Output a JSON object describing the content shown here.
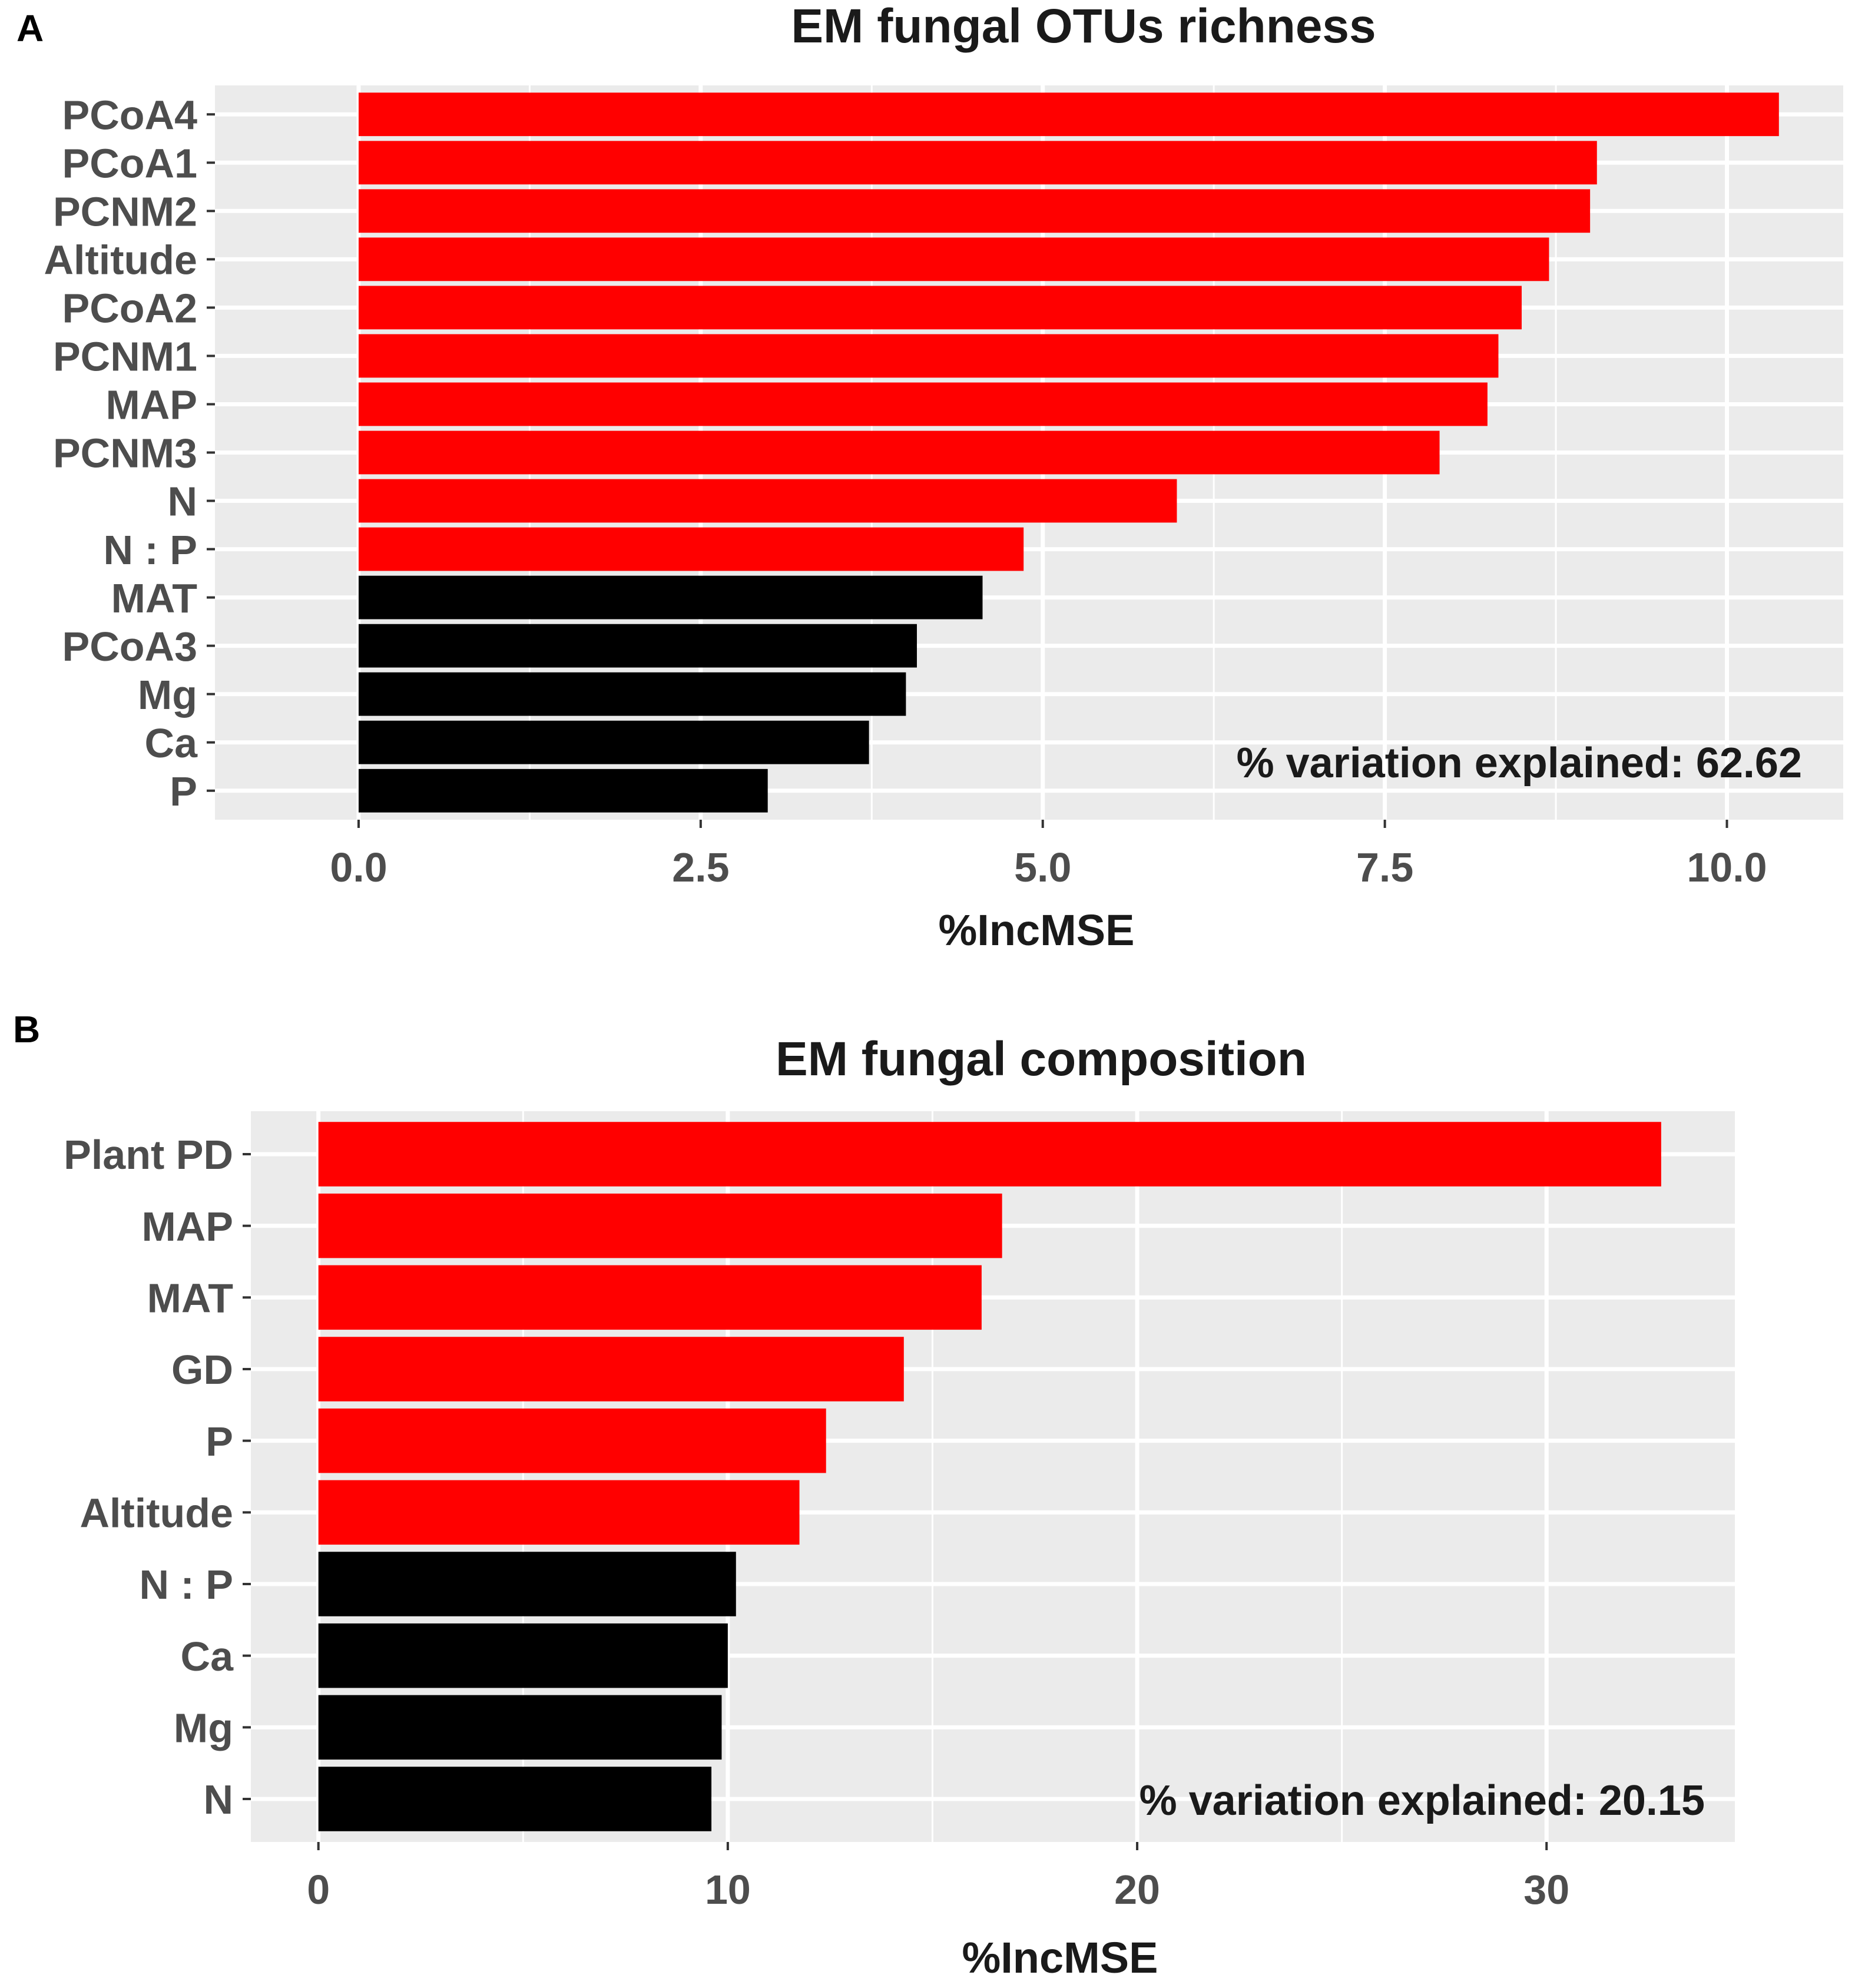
{
  "colors": {
    "significant": "#ff0000",
    "nonsignificant": "#000000",
    "panel_bg": "#ebebeb",
    "grid": "#ffffff",
    "text": "#4d4d4d",
    "title": "#1a1a1a"
  },
  "chart_data": [
    {
      "type": "bar",
      "orientation": "horizontal",
      "panel_label": "A",
      "title": "EM fungal OTUs richness",
      "xlabel": "%IncMSE",
      "ylabel": "",
      "xlim": [
        -1.05,
        10.85
      ],
      "xticks": [
        0.0,
        2.5,
        5.0,
        7.5,
        10.0
      ],
      "xtick_labels": [
        "0.0",
        "2.5",
        "5.0",
        "7.5",
        "10.0"
      ],
      "grid": true,
      "categories": [
        "PCoA4",
        "PCoA1",
        "PCNM2",
        "Altitude",
        "PCoA2",
        "PCNM1",
        "MAP",
        "PCNM3",
        "N",
        "N : P",
        "MAT",
        "PCoA3",
        "Mg",
        "Ca",
        "P"
      ],
      "values": [
        10.38,
        9.05,
        9.0,
        8.7,
        8.5,
        8.33,
        8.25,
        7.9,
        5.98,
        4.86,
        4.56,
        4.08,
        4.0,
        3.73,
        2.99
      ],
      "significant": [
        true,
        true,
        true,
        true,
        true,
        true,
        true,
        true,
        true,
        true,
        false,
        false,
        false,
        false,
        false
      ],
      "annotation": "% variation explained: 62.62"
    },
    {
      "type": "bar",
      "orientation": "horizontal",
      "panel_label": "B",
      "title": "EM fungal composition",
      "xlabel": "%IncMSE",
      "ylabel": "",
      "xlim": [
        -1.65,
        34.6
      ],
      "xticks": [
        0,
        10,
        20,
        30
      ],
      "xtick_labels": [
        "0",
        "10",
        "20",
        "30"
      ],
      "grid": true,
      "categories": [
        "Plant PD",
        "MAP",
        "MAT",
        "GD",
        "P",
        "Altitude",
        "N : P",
        "Ca",
        "Mg",
        "N"
      ],
      "values": [
        32.8,
        16.7,
        16.2,
        14.3,
        12.4,
        11.75,
        10.2,
        10.0,
        9.85,
        9.6
      ],
      "significant": [
        true,
        true,
        true,
        true,
        true,
        true,
        false,
        false,
        false,
        false
      ],
      "annotation": "% variation explained: 20.15"
    }
  ]
}
